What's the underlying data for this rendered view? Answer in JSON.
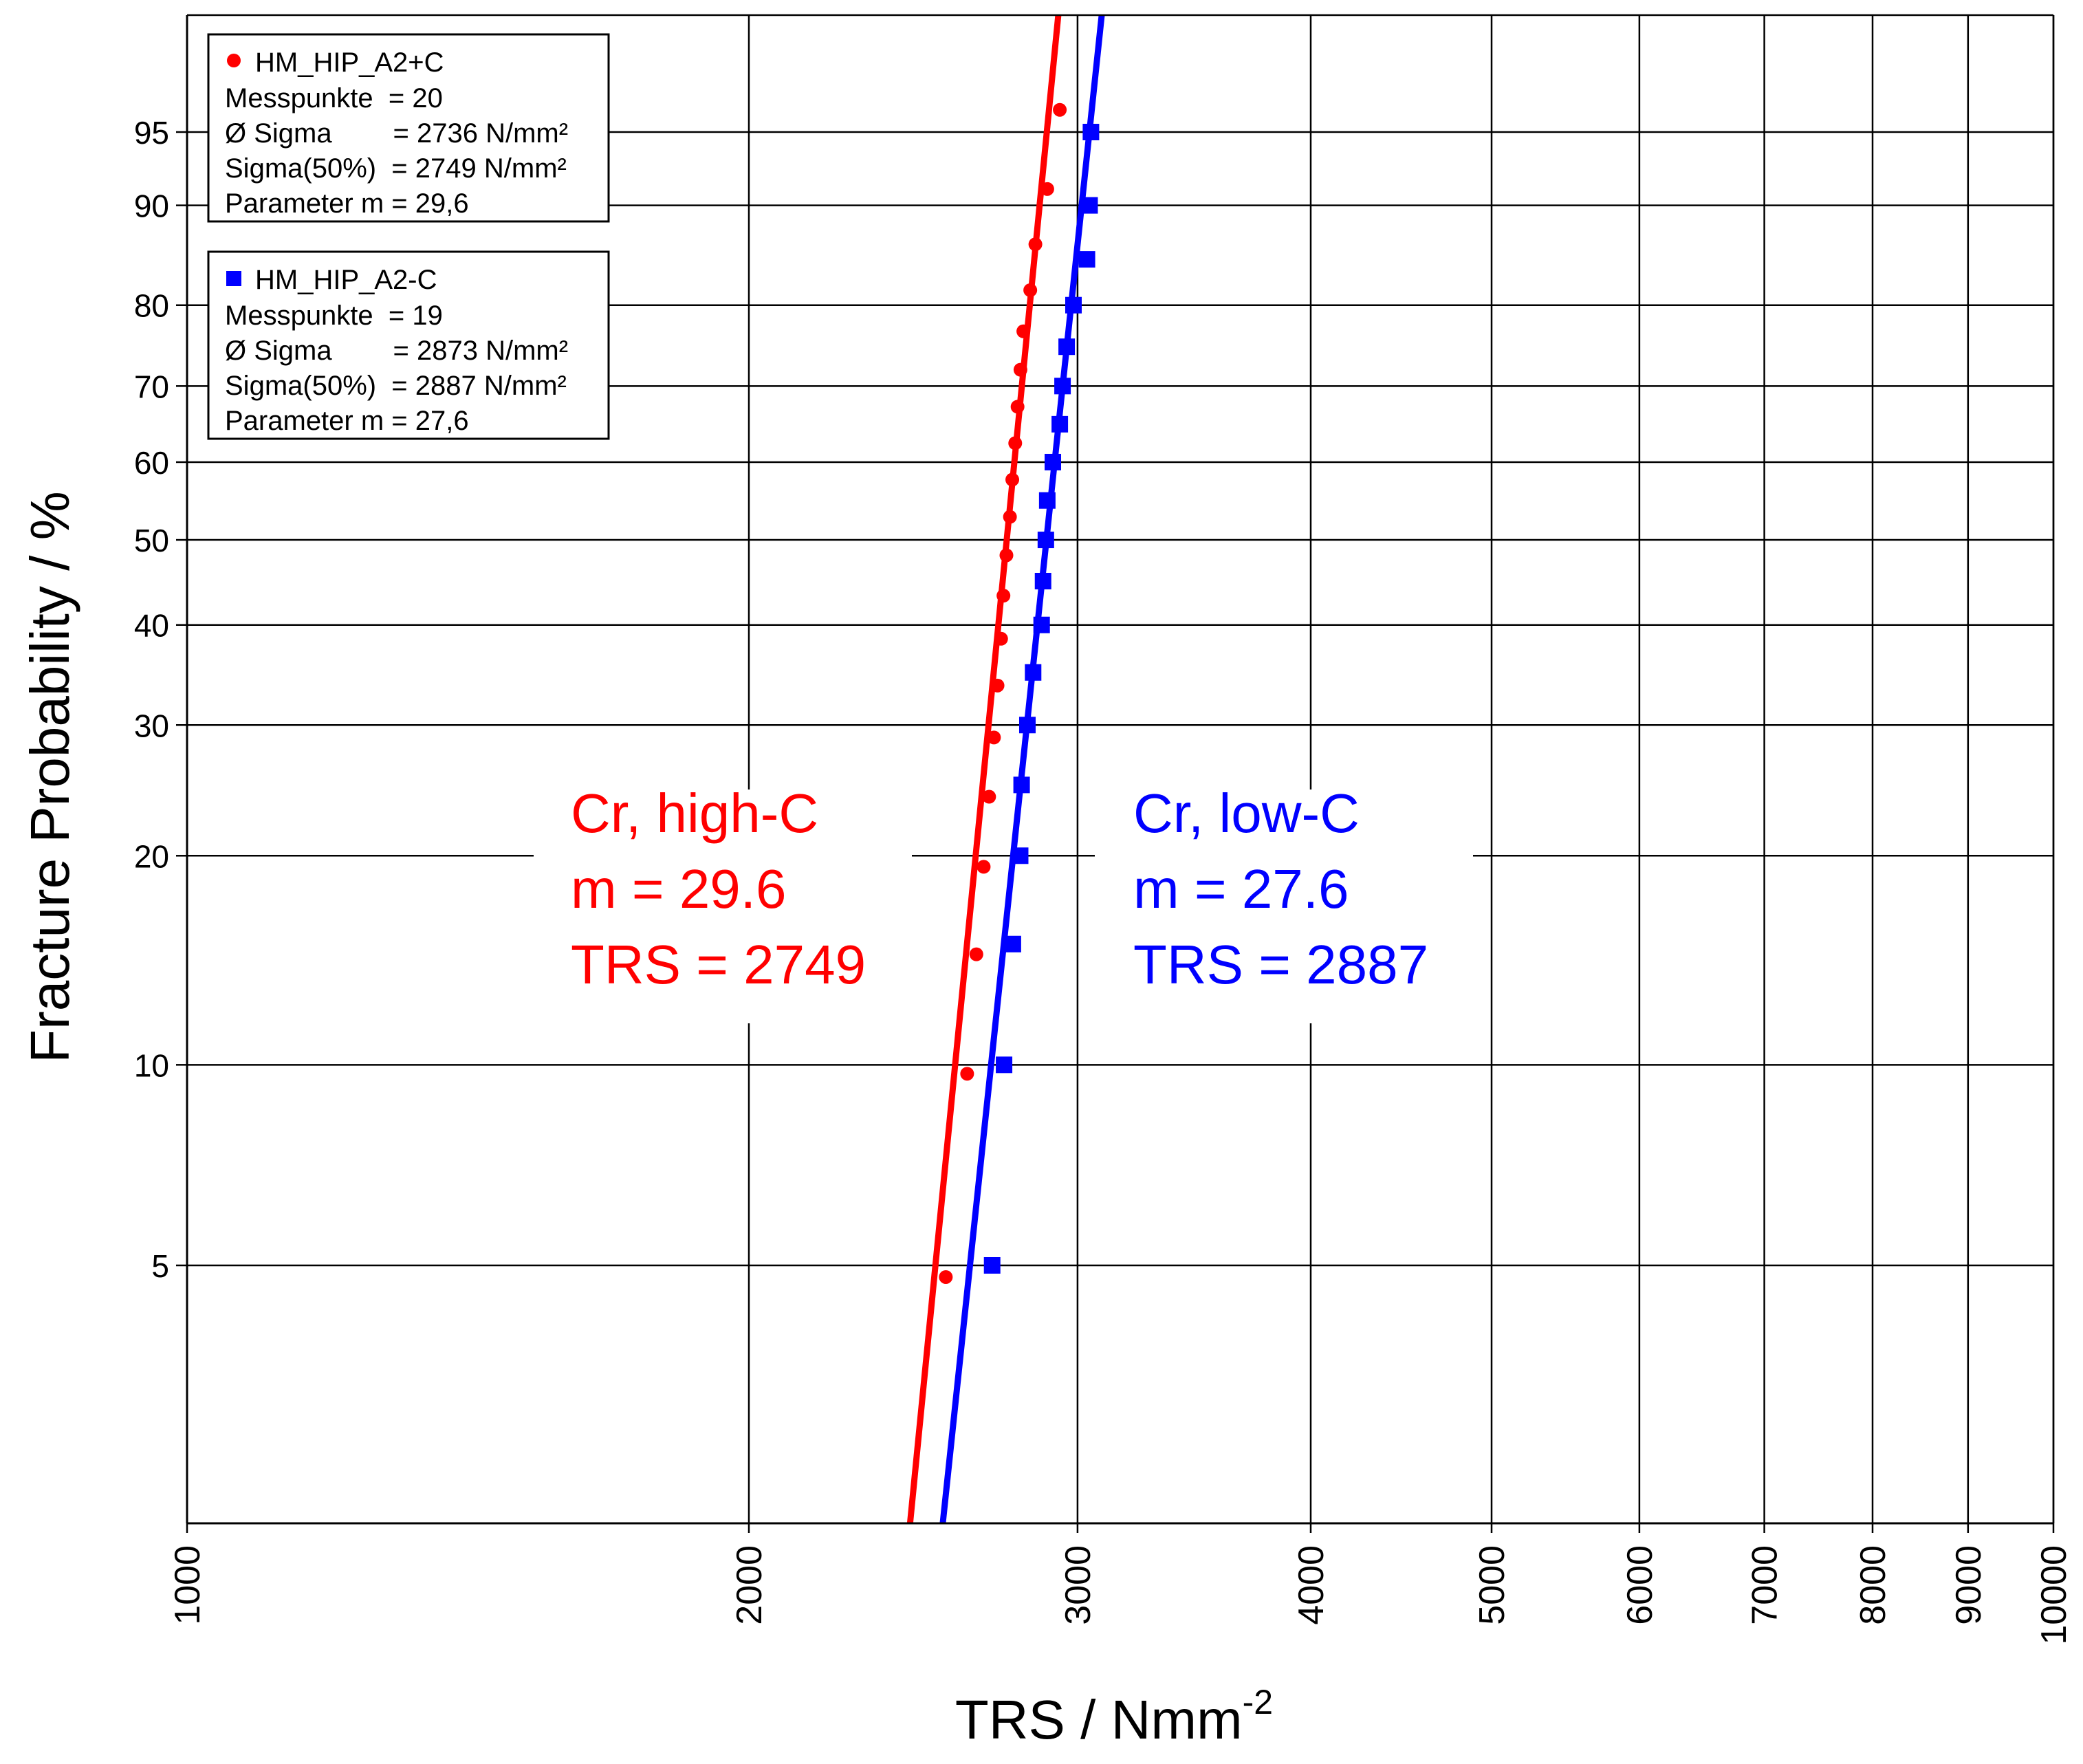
{
  "chart_data": {
    "type": "scatter",
    "title": "",
    "xlabel": "TRS / Nmm",
    "xlabel_superscript": "-2",
    "ylabel": "Fracture Probability / %",
    "x_scale": "log",
    "y_scale": "weibull",
    "xlim": [
      1000,
      10000
    ],
    "ylim": [
      1.1,
      99.9
    ],
    "grid": true,
    "x_ticks": [
      1000,
      2000,
      3000,
      4000,
      5000,
      6000,
      7000,
      8000,
      9000,
      10000
    ],
    "x_tick_labels": [
      "1000",
      "2000",
      "3000",
      "4000",
      "5000",
      "6000",
      "7000",
      "8000",
      "9000",
      "10000"
    ],
    "y_ticks": [
      5,
      10,
      20,
      30,
      40,
      50,
      60,
      70,
      80,
      90,
      95
    ],
    "y_tick_labels": [
      "5",
      "10",
      "20",
      "30",
      "40",
      "50",
      "60",
      "70",
      "80",
      "90",
      "95"
    ],
    "series": [
      {
        "name": "HM_HIP_A2+C",
        "color": "#ff0000",
        "marker": "circle",
        "m": 29.6,
        "sigma50": 2749,
        "legend_lines": [
          "Messpunkte  = 20",
          "Ø Sigma        = 2736 N/mm²",
          "Sigma(50%)  = 2749 N/mm²",
          "Parameter m = 29,6"
        ],
        "annotation": [
          "Cr, high-C",
          "m = 29.6",
          "TRS = 2749"
        ],
        "points": [
          [
            2550,
            4.8
          ],
          [
            2618,
            9.7
          ],
          [
            2648,
            14.5
          ],
          [
            2672,
            19.3
          ],
          [
            2690,
            24.1
          ],
          [
            2706,
            28.9
          ],
          [
            2718,
            33.7
          ],
          [
            2730,
            38.5
          ],
          [
            2738,
            43.3
          ],
          [
            2748,
            48.1
          ],
          [
            2760,
            52.9
          ],
          [
            2768,
            57.7
          ],
          [
            2778,
            62.5
          ],
          [
            2786,
            67.3
          ],
          [
            2796,
            72.1
          ],
          [
            2806,
            76.9
          ],
          [
            2830,
            81.7
          ],
          [
            2848,
            86.5
          ],
          [
            2890,
            91.3
          ],
          [
            2935,
            96.1
          ]
        ]
      },
      {
        "name": "HM_HIP_A2-C",
        "color": "#0000ff",
        "marker": "square",
        "m": 27.6,
        "sigma50": 2887,
        "legend_lines": [
          "Messpunkte  = 19",
          "Ø Sigma        = 2873 N/mm²",
          "Sigma(50%)  = 2887 N/mm²",
          "Parameter m = 27,6"
        ],
        "annotation": [
          "Cr, low-C",
          "m = 27.6",
          "TRS = 2887"
        ],
        "points": [
          [
            2700,
            5.0
          ],
          [
            2740,
            10.0
          ],
          [
            2770,
            15.0
          ],
          [
            2795,
            20.0
          ],
          [
            2800,
            25.0
          ],
          [
            2820,
            30.0
          ],
          [
            2840,
            35.0
          ],
          [
            2870,
            40.0
          ],
          [
            2875,
            45.0
          ],
          [
            2885,
            50.0
          ],
          [
            2890,
            55.0
          ],
          [
            2910,
            60.0
          ],
          [
            2935,
            65.0
          ],
          [
            2945,
            70.0
          ],
          [
            2960,
            75.0
          ],
          [
            2985,
            80.0
          ],
          [
            3035,
            85.0
          ],
          [
            3045,
            90.0
          ],
          [
            3050,
            95.0
          ]
        ]
      }
    ]
  }
}
